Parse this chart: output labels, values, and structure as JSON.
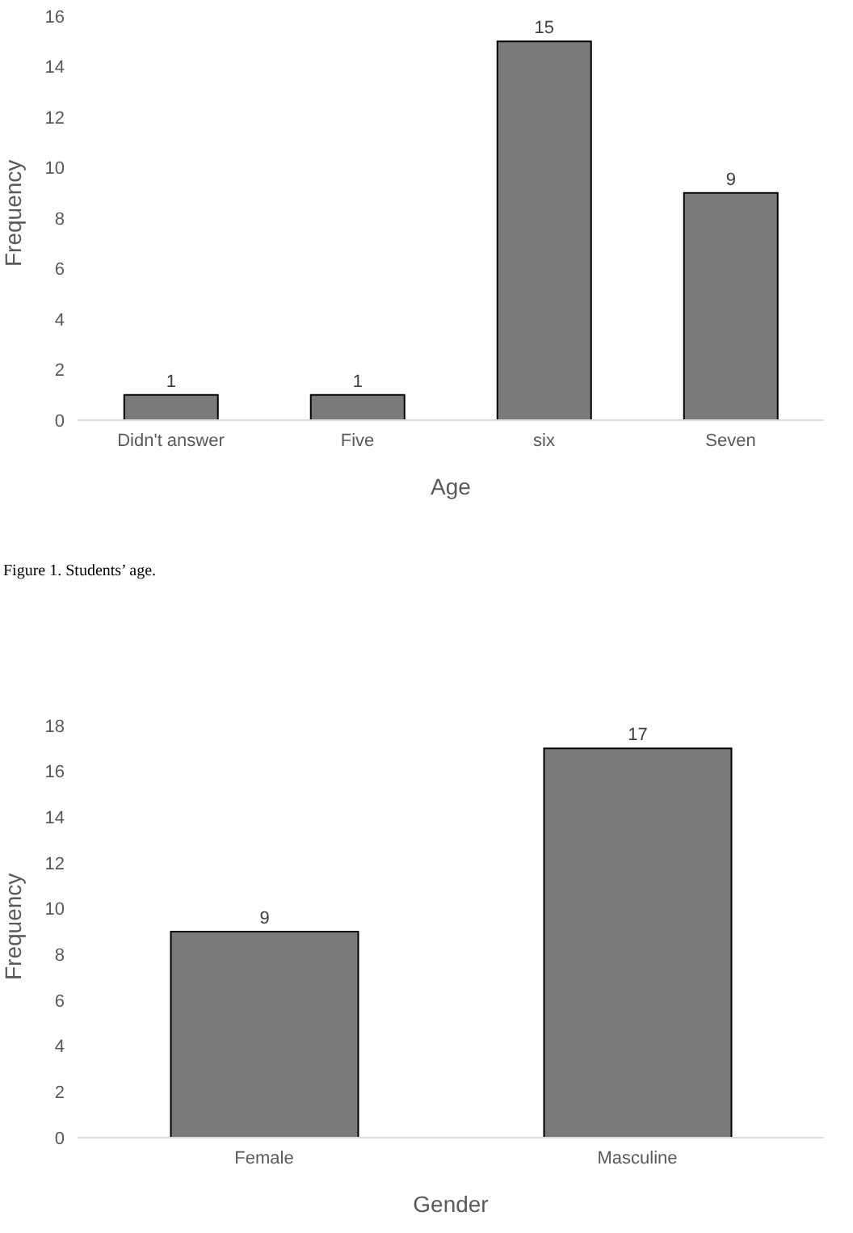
{
  "chart_data": [
    {
      "type": "bar",
      "categories": [
        "Didn't answer",
        "Five",
        "six",
        "Seven"
      ],
      "values": [
        1,
        1,
        15,
        9
      ],
      "color": "#7a7a7a",
      "ylim": [
        0,
        16
      ],
      "yticks": [
        0,
        2,
        4,
        6,
        8,
        10,
        12,
        14,
        16
      ],
      "xlabel": "Age",
      "ylabel": "Frequency",
      "data_labels": true,
      "grid": false,
      "legend": false,
      "annotations": [
        "Figure 1. Students’ age."
      ]
    },
    {
      "type": "bar",
      "categories": [
        "Female",
        "Masculine"
      ],
      "values": [
        9,
        17
      ],
      "color": "#7a7a7a",
      "ylim": [
        0,
        18
      ],
      "yticks": [
        0,
        2,
        4,
        6,
        8,
        10,
        12,
        14,
        16,
        18
      ],
      "xlabel": "Gender",
      "ylabel": "Frequency",
      "data_labels": true,
      "grid": false,
      "legend": false
    }
  ]
}
